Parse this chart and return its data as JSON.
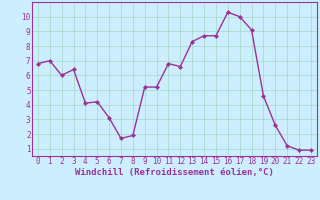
{
  "x": [
    0,
    1,
    2,
    3,
    4,
    5,
    6,
    7,
    8,
    9,
    10,
    11,
    12,
    13,
    14,
    15,
    16,
    17,
    18,
    19,
    20,
    21,
    22,
    23
  ],
  "y": [
    6.8,
    7.0,
    6.0,
    6.4,
    4.1,
    4.2,
    3.1,
    1.7,
    1.9,
    5.2,
    5.2,
    6.8,
    6.6,
    8.3,
    8.7,
    8.7,
    10.3,
    10.0,
    9.1,
    4.6,
    2.6,
    1.2,
    0.9,
    0.9
  ],
  "line_color": "#993399",
  "marker": "D",
  "marker_size": 2.0,
  "linewidth": 1.0,
  "xlabel": "Windchill (Refroidissement éolien,°C)",
  "xlabel_fontsize": 6.0,
  "bg_color": "#cceeff",
  "grid_color": "#aaddcc",
  "tick_color": "#993399",
  "spine_color": "#993399",
  "xlim": [
    -0.5,
    23.5
  ],
  "ylim": [
    0.5,
    11.0
  ],
  "yticks": [
    1,
    2,
    3,
    4,
    5,
    6,
    7,
    8,
    9,
    10
  ],
  "xticks": [
    0,
    1,
    2,
    3,
    4,
    5,
    6,
    7,
    8,
    9,
    10,
    11,
    12,
    13,
    14,
    15,
    16,
    17,
    18,
    19,
    20,
    21,
    22,
    23
  ],
  "tick_fontsize": 5.5,
  "label_fontsize": 6.5
}
